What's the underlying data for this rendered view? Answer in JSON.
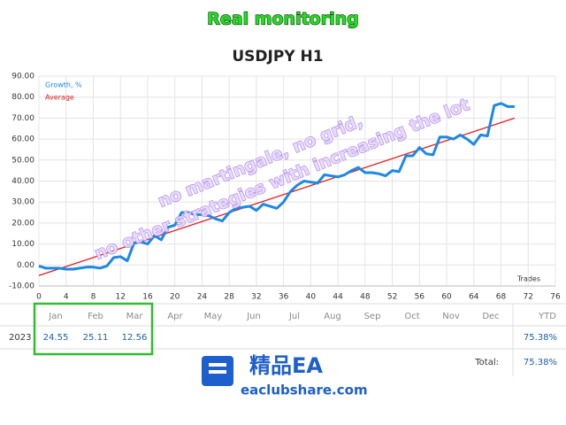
{
  "banner": "Real monitoring",
  "chart_data": {
    "type": "line",
    "title": "USDJPY H1",
    "xlabel": "Trades",
    "xlim": [
      0,
      76
    ],
    "xticks": [
      0,
      4,
      8,
      12,
      16,
      20,
      24,
      28,
      32,
      36,
      40,
      44,
      48,
      52,
      56,
      60,
      64,
      68,
      72,
      76
    ],
    "ylim": [
      -10,
      90
    ],
    "yticks": [
      {
        "value": -10,
        "label": "-10.00"
      },
      {
        "value": 0,
        "label": "0.00"
      },
      {
        "value": 10,
        "label": "10.00"
      },
      {
        "value": 20,
        "label": "20.00"
      },
      {
        "value": 30,
        "label": "30.00"
      },
      {
        "value": 40,
        "label": "40.00"
      },
      {
        "value": 50,
        "label": "50.00"
      },
      {
        "value": 60,
        "label": "60.00"
      },
      {
        "value": 70,
        "label": "70.00"
      },
      {
        "value": 80,
        "label": "80.00"
      },
      {
        "value": 90,
        "label": "90.00"
      }
    ],
    "grid": true,
    "legend": "top-left",
    "series": [
      {
        "name": "Growth, %",
        "color": "#1e88e5",
        "x": [
          0,
          1,
          2,
          3,
          4,
          5,
          6,
          7,
          8,
          9,
          10,
          11,
          12,
          13,
          14,
          15,
          16,
          17,
          18,
          19,
          20,
          21,
          22,
          23,
          24,
          25,
          26,
          27,
          28,
          29,
          30,
          31,
          32,
          33,
          34,
          35,
          36,
          37,
          38,
          39,
          40,
          41,
          42,
          43,
          44,
          45,
          46,
          47,
          48,
          49,
          50,
          51,
          52,
          53,
          54,
          55,
          56,
          57,
          58,
          59,
          60,
          61,
          62,
          63,
          64,
          65,
          66,
          67,
          68,
          69,
          70
        ],
        "values": [
          -0.5,
          -1.5,
          -1.5,
          -1.5,
          -2,
          -2,
          -1.5,
          -1,
          -1,
          -1.5,
          -0.5,
          3.5,
          4,
          2,
          10.5,
          11,
          10,
          14,
          12,
          18,
          19,
          25,
          25,
          24,
          24,
          23.5,
          22,
          21,
          25,
          27,
          27.5,
          28,
          26,
          29,
          28,
          27,
          30,
          35,
          38,
          40,
          39.5,
          39,
          43,
          42.5,
          42,
          43,
          45,
          46.5,
          44,
          44,
          43.5,
          42.5,
          45,
          44.5,
          52,
          52,
          56,
          53,
          52.5,
          61,
          61,
          60,
          62,
          60,
          57.5,
          62,
          61.5,
          76,
          77,
          75.5,
          75.5
        ]
      },
      {
        "name": "Average",
        "color": "#e02020",
        "x": [
          0,
          70
        ],
        "values": [
          -5,
          70
        ]
      }
    ]
  },
  "watermark": [
    "no martingale, no grid,",
    "no other strategies with increasing the lot"
  ],
  "table": {
    "header": [
      "Jan",
      "Feb",
      "Mar",
      "Apr",
      "May",
      "Jun",
      "Jul",
      "Aug",
      "Sep",
      "Oct",
      "Nov",
      "Dec",
      "YTD"
    ],
    "rows": [
      [
        "2023",
        "24.55",
        "25.11",
        "12.56",
        "",
        "",
        "",
        "",
        "",
        "",
        "",
        "",
        "",
        "75.38%"
      ]
    ],
    "total_label": "Total:",
    "total_value": "75.38%"
  },
  "logo": {
    "name": "精品EA",
    "site": "eaclubshare.com"
  }
}
